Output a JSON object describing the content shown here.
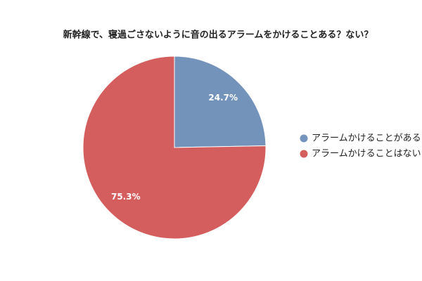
{
  "chart_data": {
    "type": "pie",
    "title": "新幹線で、寝過ごさないように音の出るアラームをかけることある？ない？",
    "series": [
      {
        "name": "アラームかけることがある",
        "color": "#7393bb",
        "values": [
          24.7
        ],
        "value_labels": [
          "24.7%"
        ]
      },
      {
        "name": "アラームかけることはない",
        "color": "#d45d5d",
        "values": [
          75.3
        ],
        "value_labels": [
          "75.3%"
        ]
      }
    ],
    "legend": "right"
  }
}
